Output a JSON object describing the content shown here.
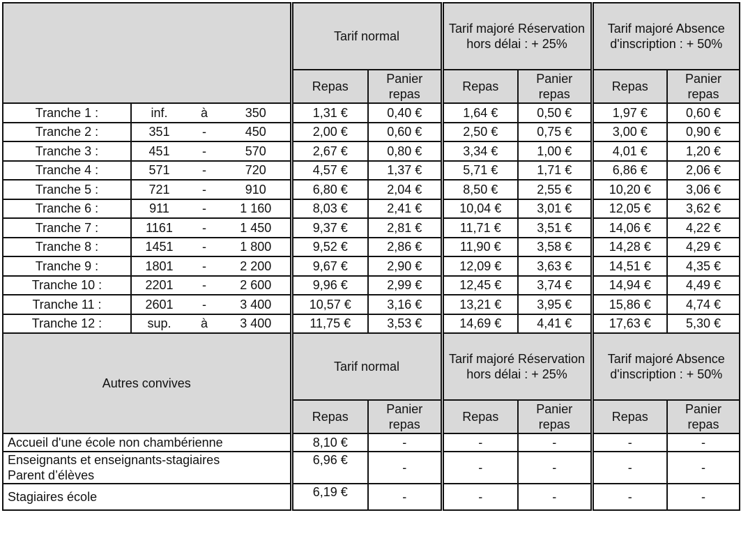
{
  "headers": {
    "group_normal": "Tarif normal",
    "group_late": "Tarif majoré Réservation hors délai : + 25%",
    "group_absence": "Tarif majoré Absence d'inscription : + 50%",
    "repas": "Repas",
    "panier": "Panier repas",
    "autres_convives": "Autres convives"
  },
  "tranches": [
    {
      "label": "Tranche 1 :",
      "from": "inf.",
      "sep": "à",
      "to": "350",
      "values": [
        "1,31 €",
        "0,40 €",
        "1,64 €",
        "0,50 €",
        "1,97 €",
        "0,60 €"
      ]
    },
    {
      "label": "Tranche 2 :",
      "from": "351",
      "sep": "-",
      "to": "450",
      "values": [
        "2,00 €",
        "0,60 €",
        "2,50 €",
        "0,75 €",
        "3,00 €",
        "0,90 €"
      ]
    },
    {
      "label": "Tranche 3 :",
      "from": "451",
      "sep": "-",
      "to": "570",
      "values": [
        "2,67 €",
        "0,80 €",
        "3,34 €",
        "1,00 €",
        "4,01 €",
        "1,20 €"
      ]
    },
    {
      "label": "Tranche 4 :",
      "from": "571",
      "sep": "-",
      "to": "720",
      "values": [
        "4,57 €",
        "1,37 €",
        "5,71 €",
        "1,71 €",
        "6,86 €",
        "2,06 €"
      ]
    },
    {
      "label": "Tranche 5 :",
      "from": "721",
      "sep": "-",
      "to": "910",
      "values": [
        "6,80 €",
        "2,04 €",
        "8,50 €",
        "2,55 €",
        "10,20 €",
        "3,06 €"
      ]
    },
    {
      "label": "Tranche 6 :",
      "from": "911",
      "sep": "-",
      "to": "1 160",
      "values": [
        "8,03 €",
        "2,41 €",
        "10,04 €",
        "3,01 €",
        "12,05 €",
        "3,62 €"
      ]
    },
    {
      "label": "Tranche 7 :",
      "from": "1161",
      "sep": "-",
      "to": "1 450",
      "values": [
        "9,37 €",
        "2,81 €",
        "11,71 €",
        "3,51 €",
        "14,06 €",
        "4,22 €"
      ]
    },
    {
      "label": "Tranche 8 :",
      "from": "1451",
      "sep": "-",
      "to": "1 800",
      "values": [
        "9,52 €",
        "2,86 €",
        "11,90 €",
        "3,58 €",
        "14,28 €",
        "4,29 €"
      ]
    },
    {
      "label": "Tranche 9 :",
      "from": "1801",
      "sep": "-",
      "to": "2 200",
      "values": [
        "9,67 €",
        "2,90 €",
        "12,09 €",
        "3,63 €",
        "14,51 €",
        "4,35 €"
      ]
    },
    {
      "label": "Tranche 10 :",
      "from": "2201",
      "sep": "-",
      "to": "2 600",
      "values": [
        "9,96 €",
        "2,99 €",
        "12,45 €",
        "3,74 €",
        "14,94 €",
        "4,49 €"
      ]
    },
    {
      "label": "Tranche 11 :",
      "from": "2601",
      "sep": "-",
      "to": "3 400",
      "values": [
        "10,57 €",
        "3,16 €",
        "13,21 €",
        "3,95 €",
        "15,86 €",
        "4,74 €"
      ]
    },
    {
      "label": "Tranche 12 :",
      "from": "sup.",
      "sep": "à",
      "to": "3 400",
      "values": [
        "11,75 €",
        "3,53 €",
        "14,69 €",
        "4,41 €",
        "17,63 €",
        "5,30 €"
      ]
    }
  ],
  "autres": [
    {
      "label": "Accueil d'une école non chambérienne",
      "values": [
        "8,10 €",
        "-",
        "-",
        "-",
        "-",
        "-"
      ]
    },
    {
      "label": "Enseignants et enseignants-stagiaires\nParent d’élèves",
      "values": [
        "6,96 €",
        "-",
        "-",
        "-",
        "-",
        "-"
      ]
    },
    {
      "label": "Stagiaires école",
      "values": [
        "6,19 €",
        "-",
        "-",
        "-",
        "-",
        "-"
      ]
    }
  ]
}
